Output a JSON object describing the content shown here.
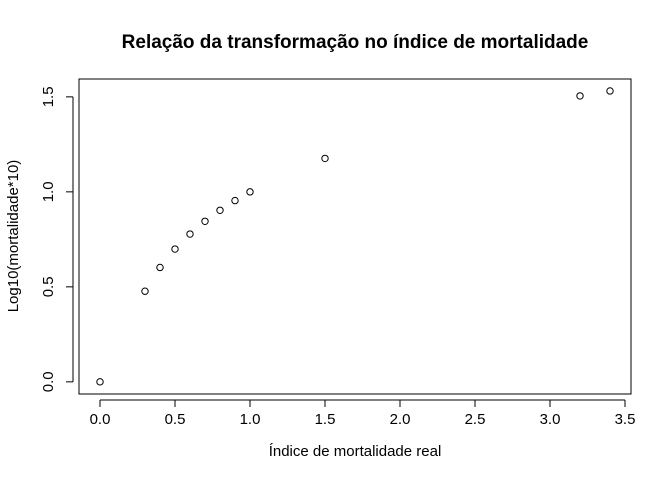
{
  "chart_data": {
    "type": "scatter",
    "title": "Relação da transformação no índice de mortalidade",
    "xlabel": "Índice de mortalidade real",
    "ylabel": "Log10(mortalidade*10)",
    "xlim": [
      -0.14,
      3.54
    ],
    "ylim": [
      -0.064,
      1.594
    ],
    "xticks": [
      0.0,
      0.5,
      1.0,
      1.5,
      2.0,
      2.5,
      3.0,
      3.5
    ],
    "xtick_labels": [
      "0.0",
      "0.5",
      "1.0",
      "1.5",
      "2.0",
      "2.5",
      "3.0",
      "3.5"
    ],
    "yticks": [
      0.0,
      0.5,
      1.0,
      1.5
    ],
    "ytick_labels": [
      "0.0",
      "0.5",
      "1.0",
      "1.5"
    ],
    "grid": false,
    "legend": "none",
    "marker": "open-circle",
    "series": [
      {
        "x": [
          0.0,
          0.3,
          0.4,
          0.5,
          0.6,
          0.7,
          0.8,
          0.9,
          1.0,
          1.5,
          3.2,
          3.4
        ],
        "y": [
          0.0,
          0.477,
          0.602,
          0.699,
          0.778,
          0.845,
          0.903,
          0.954,
          1.0,
          1.176,
          1.505,
          1.531
        ]
      }
    ]
  }
}
